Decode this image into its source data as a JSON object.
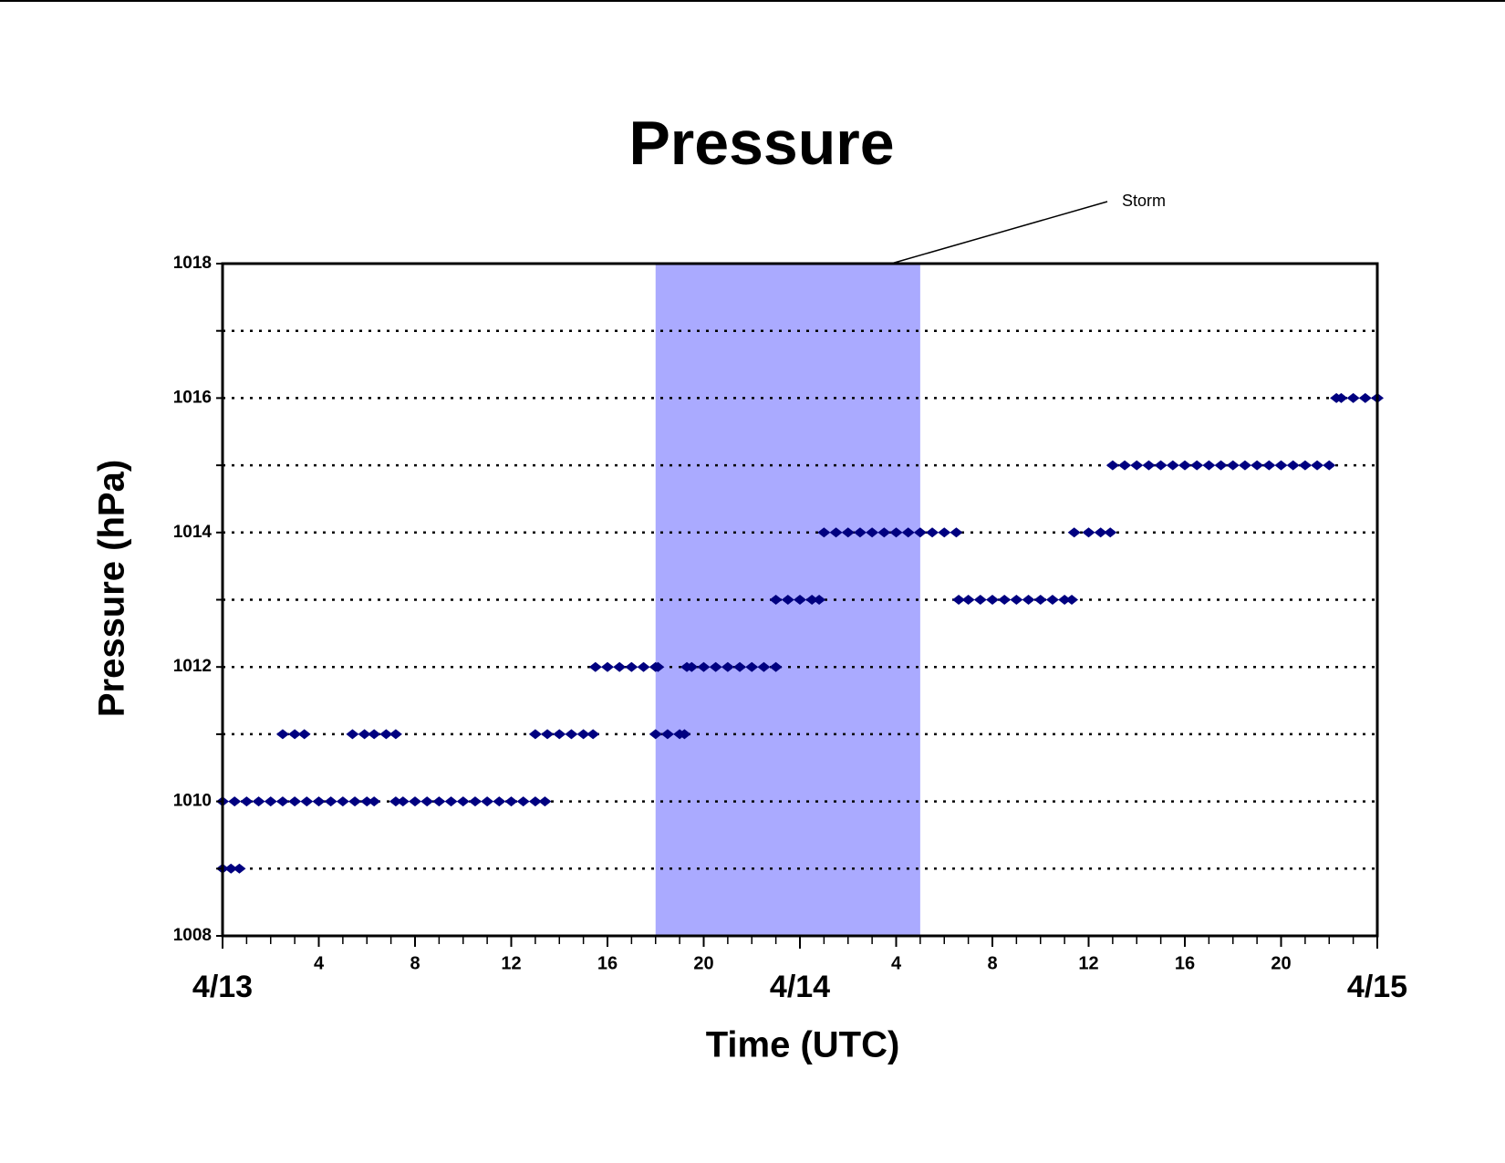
{
  "chart_data": {
    "type": "scatter",
    "title": "Pressure",
    "xlabel": "Time (UTC)",
    "ylabel": "Pressure (hPa)",
    "xlim": [
      0,
      48
    ],
    "ylim": [
      1008,
      1018
    ],
    "xticks": [
      4,
      8,
      12,
      16,
      20,
      {
        "value": 28,
        "label": "4"
      },
      {
        "value": 32,
        "label": "8"
      },
      {
        "value": 36,
        "label": "12"
      },
      {
        "value": 40,
        "label": "16"
      },
      {
        "value": 44,
        "label": "20"
      }
    ],
    "date_ticks": [
      {
        "value": 0,
        "label": "4/13"
      },
      {
        "value": 24,
        "label": "4/14"
      },
      {
        "value": 48,
        "label": "4/15"
      }
    ],
    "yticks": [
      1008,
      1010,
      1012,
      1014,
      1016,
      1018
    ],
    "minor_yticks": [
      1009,
      1011,
      1013,
      1015,
      1017
    ],
    "grid": true,
    "color": "#000080",
    "shaded_region": {
      "x": [
        18,
        29
      ],
      "label": "Storm",
      "color": "#aaaaff"
    },
    "x": [
      0,
      0.35,
      0.7,
      0,
      0.5,
      1,
      1.5,
      2,
      2.5,
      3,
      3.5,
      4,
      4.5,
      5,
      5.5,
      6,
      6.3,
      7.2,
      7.5,
      8,
      8.5,
      9,
      9.5,
      10,
      10.5,
      11,
      11.5,
      12,
      12.5,
      13,
      13.4,
      2.5,
      3,
      3.4,
      5.4,
      5.9,
      6.3,
      6.8,
      7.2,
      13,
      13.5,
      14,
      14.5,
      15,
      15.4,
      18,
      18.5,
      19,
      19.2,
      15.5,
      16,
      16.5,
      17,
      17.5,
      18,
      18.1,
      19.3,
      19.5,
      20,
      20.5,
      21,
      21.5,
      22,
      22.5,
      23,
      23,
      23.5,
      24,
      24.5,
      24.8,
      30.6,
      31,
      31.5,
      32,
      32.5,
      33,
      33.5,
      34,
      34.5,
      35,
      35.3,
      25,
      25.5,
      26,
      26.5,
      27,
      27.5,
      28,
      28.5,
      29,
      29.5,
      30,
      30.5,
      35.4,
      36,
      36.5,
      36.9,
      37,
      37.5,
      38,
      38.5,
      39,
      39.5,
      40,
      40.5,
      41,
      41.5,
      42,
      42.5,
      43,
      43.5,
      44,
      44.5,
      45,
      45.5,
      46,
      46.3,
      46.5,
      47,
      47.5,
      48
    ],
    "values": [
      1009,
      1009,
      1009,
      1010,
      1010,
      1010,
      1010,
      1010,
      1010,
      1010,
      1010,
      1010,
      1010,
      1010,
      1010,
      1010,
      1010,
      1010,
      1010,
      1010,
      1010,
      1010,
      1010,
      1010,
      1010,
      1010,
      1010,
      1010,
      1010,
      1010,
      1010,
      1011,
      1011,
      1011,
      1011,
      1011,
      1011,
      1011,
      1011,
      1011,
      1011,
      1011,
      1011,
      1011,
      1011,
      1011,
      1011,
      1011,
      1011,
      1012,
      1012,
      1012,
      1012,
      1012,
      1012,
      1012,
      1012,
      1012,
      1012,
      1012,
      1012,
      1012,
      1012,
      1012,
      1012,
      1013,
      1013,
      1013,
      1013,
      1013,
      1013,
      1013,
      1013,
      1013,
      1013,
      1013,
      1013,
      1013,
      1013,
      1013,
      1013,
      1014,
      1014,
      1014,
      1014,
      1014,
      1014,
      1014,
      1014,
      1014,
      1014,
      1014,
      1014,
      1014,
      1014,
      1014,
      1014,
      1015,
      1015,
      1015,
      1015,
      1015,
      1015,
      1015,
      1015,
      1015,
      1015,
      1015,
      1015,
      1015,
      1015,
      1015,
      1015,
      1015,
      1015,
      1015,
      1016,
      1016,
      1016,
      1016,
      1016
    ]
  }
}
